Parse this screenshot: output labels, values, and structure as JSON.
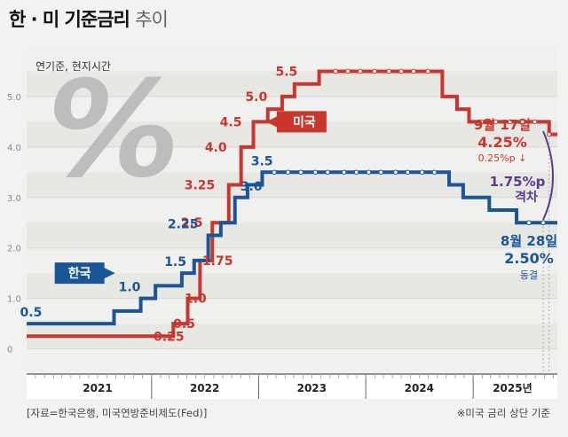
{
  "title": {
    "bold": "한 · 미 기준금리",
    "light": "추이"
  },
  "subtitle": "연기준, 현지시간",
  "source": "[자료=한국은행, 미국연방준비제도(Fed)]",
  "note": "※미국 금리 상단 기준",
  "colors": {
    "us": "#c8362d",
    "kr": "#1a5597",
    "gap": "#5b3b8a"
  },
  "chart_data": {
    "type": "line",
    "ylim": [
      -0.5,
      6.0
    ],
    "yticks": [
      "0",
      "1.0",
      "2.0",
      "3.0",
      "4.0",
      "5.0"
    ],
    "ytick_values": [
      0,
      1,
      2,
      3,
      4,
      5
    ],
    "xlim": [
      "2020-11-01",
      "2025-10-15"
    ],
    "x_category_labels": [
      "2021",
      "2022",
      "2023",
      "2024",
      "2025년"
    ],
    "x_category_centers": [
      "2021-07-01",
      "2022-07-01",
      "2023-07-01",
      "2024-07-01",
      "2025-05-15"
    ],
    "x_year_ticks": [
      "2022-01-01",
      "2023-01-01",
      "2024-01-01",
      "2025-01-01"
    ],
    "series": [
      {
        "name": "미국",
        "key": "us",
        "points": [
          [
            "2020-11-01",
            0.25
          ],
          [
            "2022-03-16",
            0.5
          ],
          [
            "2022-05-04",
            1.0
          ],
          [
            "2022-06-15",
            1.75
          ],
          [
            "2022-07-27",
            2.5
          ],
          [
            "2022-09-21",
            3.25
          ],
          [
            "2022-11-02",
            4.0
          ],
          [
            "2022-12-14",
            4.5
          ],
          [
            "2023-02-01",
            4.75
          ],
          [
            "2023-03-22",
            5.0
          ],
          [
            "2023-05-03",
            5.25
          ],
          [
            "2023-07-26",
            5.5
          ],
          [
            "2024-09-18",
            5.0
          ],
          [
            "2024-11-07",
            4.75
          ],
          [
            "2024-12-18",
            4.5
          ],
          [
            "2025-09-17",
            4.25
          ]
        ],
        "markers": [
          "2023-09-20",
          "2023-11-01",
          "2023-12-13",
          "2024-01-31",
          "2024-03-20",
          "2024-05-01",
          "2024-06-12",
          "2024-07-31",
          "2025-01-29",
          "2025-03-19",
          "2025-05-07",
          "2025-06-18",
          "2025-07-30",
          "2025-09-17"
        ]
      },
      {
        "name": "한국",
        "key": "kr",
        "points": [
          [
            "2020-11-01",
            0.5
          ],
          [
            "2021-08-26",
            0.75
          ],
          [
            "2021-11-25",
            1.0
          ],
          [
            "2022-01-14",
            1.25
          ],
          [
            "2022-04-14",
            1.5
          ],
          [
            "2022-05-26",
            1.75
          ],
          [
            "2022-07-13",
            2.25
          ],
          [
            "2022-08-25",
            2.5
          ],
          [
            "2022-10-12",
            3.0
          ],
          [
            "2022-11-24",
            3.25
          ],
          [
            "2023-01-13",
            3.5
          ],
          [
            "2024-10-11",
            3.25
          ],
          [
            "2024-11-28",
            3.0
          ],
          [
            "2025-02-25",
            2.75
          ],
          [
            "2025-05-29",
            2.5
          ],
          [
            "2025-10-15",
            2.5
          ]
        ],
        "markers": [
          "2023-02-23",
          "2023-04-11",
          "2023-05-25",
          "2023-07-13",
          "2023-08-24",
          "2023-10-19",
          "2023-11-30",
          "2024-01-11",
          "2024-02-22",
          "2024-04-12",
          "2024-05-23",
          "2024-07-11",
          "2024-08-22",
          "2025-07-10",
          "2025-08-28"
        ]
      }
    ],
    "annotations": {
      "us_labels": [
        {
          "text": "0.25",
          "x": "2022-03-01",
          "y": 0.25
        },
        {
          "text": "0.5",
          "x": "2022-04-22",
          "y": 0.5
        },
        {
          "text": "1.0",
          "x": "2022-05-31",
          "y": 1.0
        },
        {
          "text": "1.75",
          "x": "2022-08-14",
          "y": 1.75
        },
        {
          "text": "2.5",
          "x": "2022-05-18",
          "y": 2.5
        },
        {
          "text": "3.25",
          "x": "2022-06-14",
          "y": 3.25
        },
        {
          "text": "4.0",
          "x": "2022-08-08",
          "y": 4.0
        },
        {
          "text": "4.5",
          "x": "2022-09-28",
          "y": 4.5
        },
        {
          "text": "5.0",
          "x": "2022-12-24",
          "y": 5.0
        },
        {
          "text": "5.5",
          "x": "2023-04-06",
          "y": 5.5
        }
      ],
      "kr_labels": [
        {
          "text": "0.5",
          "x": "2020-11-16",
          "y": 0.5
        },
        {
          "text": "1.0",
          "x": "2021-10-18",
          "y": 1.0
        },
        {
          "text": "1.5",
          "x": "2022-03-23",
          "y": 1.5
        },
        {
          "text": "2.25",
          "x": "2022-04-18",
          "y": 2.25
        },
        {
          "text": "3.0",
          "x": "2022-12-07",
          "y": 3.0
        },
        {
          "text": "3.5",
          "x": "2023-01-12",
          "y": 3.5
        }
      ],
      "us_tag": "미국",
      "kr_tag": "한국",
      "us_end": {
        "date": "9월 17일",
        "value": "4.25%",
        "change": "0.25%p ↓"
      },
      "kr_end": {
        "date": "8월 28일",
        "value": "2.50%",
        "change": "동결"
      },
      "gap": {
        "value": "1.75%p",
        "label": "격차"
      }
    }
  }
}
